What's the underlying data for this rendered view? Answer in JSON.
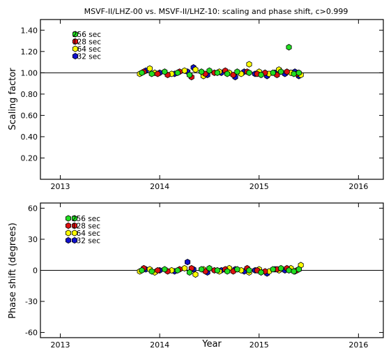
{
  "chart_data": [
    {
      "type": "scatter",
      "title": "MSVF-II/LHZ-00 vs. MSVF-II/LHZ-10: scaling and phase shift, c>0.999",
      "ylabel": "Scaling factor",
      "xlabel": "",
      "xlim": [
        2012.8,
        2016.25
      ],
      "ylim": [
        0.0,
        1.5
      ],
      "xticks": [
        2013,
        2014,
        2015,
        2016
      ],
      "xtick_labels": [
        "2013",
        "2014",
        "2015",
        "2016"
      ],
      "yticks": [
        0.2,
        0.4,
        0.6,
        0.8,
        1.0,
        1.2,
        1.4
      ],
      "ytick_labels": [
        "0.20",
        "0.40",
        "0.60",
        "0.80",
        "1.00",
        "1.20",
        "1.40"
      ],
      "reference_line": 1.0,
      "grid": false,
      "legend_position": "top-left",
      "legend_style": "single-marker",
      "series": [
        {
          "name": "256 sec",
          "color": "#22dd22",
          "x": [
            2013.82,
            2013.92,
            2014.05,
            2014.18,
            2014.3,
            2014.42,
            2014.5,
            2014.58,
            2014.68,
            2014.78,
            2014.9,
            2015.02,
            2015.14,
            2015.22,
            2015.3,
            2015.35,
            2015.4
          ],
          "y": [
            1.0,
            0.99,
            1.01,
            1.0,
            0.98,
            1.01,
            1.02,
            1.0,
            0.99,
            1.01,
            1.0,
            0.98,
            1.0,
            1.01,
            1.24,
            0.99,
            1.0
          ]
        },
        {
          "name": "128 sec",
          "color": "#dd1111",
          "x": [
            2013.84,
            2013.98,
            2014.08,
            2014.2,
            2014.32,
            2014.46,
            2014.55,
            2014.66,
            2014.74,
            2014.88,
            2014.98,
            2015.06,
            2015.18,
            2015.28,
            2015.38
          ],
          "y": [
            1.01,
            0.99,
            0.98,
            1.01,
            0.96,
            0.99,
            1.0,
            1.02,
            0.98,
            1.01,
            0.99,
            1.0,
            0.98,
            1.01,
            0.99
          ]
        },
        {
          "name": "64 sec",
          "color": "#ffff00",
          "x": [
            2013.8,
            2013.9,
            2013.95,
            2014.12,
            2014.25,
            2014.36,
            2014.44,
            2014.6,
            2014.7,
            2014.82,
            2014.9,
            2015.0,
            2015.1,
            2015.2,
            2015.32,
            2015.42
          ],
          "y": [
            0.99,
            1.04,
            1.0,
            0.99,
            1.02,
            1.03,
            0.97,
            1.01,
            1.0,
            0.99,
            1.08,
            1.01,
            0.99,
            1.03,
            1.0,
            0.98
          ]
        },
        {
          "name": "32 sec",
          "color": "#1111cc",
          "x": [
            2013.86,
            2014.0,
            2014.15,
            2014.28,
            2014.34,
            2014.48,
            2014.62,
            2014.76,
            2014.85,
            2014.96,
            2015.08,
            2015.16,
            2015.26,
            2015.36,
            2015.4
          ],
          "y": [
            1.02,
            1.0,
            0.99,
            1.01,
            1.05,
            0.98,
            1.0,
            0.96,
            1.01,
            0.99,
            0.97,
            1.0,
            0.99,
            1.01,
            0.97
          ]
        }
      ]
    },
    {
      "type": "scatter",
      "title": "",
      "ylabel": "Phase shift (degrees)",
      "xlabel": "Year",
      "xlim": [
        2012.8,
        2016.25
      ],
      "ylim": [
        -65,
        65
      ],
      "xticks": [
        2013,
        2014,
        2015,
        2016
      ],
      "xtick_labels": [
        "2013",
        "2014",
        "2015",
        "2016"
      ],
      "yticks": [
        -60,
        -30,
        0,
        30,
        60
      ],
      "ytick_labels": [
        "-60",
        "-30",
        "0",
        "30",
        "60"
      ],
      "reference_line": 0,
      "grid": false,
      "legend_position": "top-left",
      "legend_style": "double-marker",
      "series": [
        {
          "name": "256 sec",
          "color": "#22dd22",
          "x": [
            2013.82,
            2013.92,
            2014.05,
            2014.18,
            2014.3,
            2014.42,
            2014.5,
            2014.58,
            2014.68,
            2014.78,
            2014.9,
            2015.02,
            2015.14,
            2015.22,
            2015.3,
            2015.35,
            2015.4
          ],
          "y": [
            0,
            -1,
            1,
            0,
            -2,
            1,
            2,
            0,
            -1,
            1,
            0,
            -2,
            1,
            2,
            0,
            -1,
            1
          ]
        },
        {
          "name": "128 sec",
          "color": "#dd1111",
          "x": [
            2013.84,
            2013.98,
            2014.08,
            2014.2,
            2014.32,
            2014.46,
            2014.55,
            2014.66,
            2014.74,
            2014.88,
            2014.98,
            2015.06,
            2015.18,
            2015.28,
            2015.38
          ],
          "y": [
            2,
            0,
            -1,
            1,
            2,
            -1,
            0,
            1,
            -1,
            2,
            0,
            -1,
            1,
            2,
            0
          ]
        },
        {
          "name": "64 sec",
          "color": "#ffff00",
          "x": [
            2013.8,
            2013.9,
            2013.95,
            2014.12,
            2014.25,
            2014.36,
            2014.44,
            2014.6,
            2014.7,
            2014.82,
            2014.9,
            2015.0,
            2015.1,
            2015.2,
            2015.32,
            2015.42
          ],
          "y": [
            -1,
            1,
            -2,
            0,
            2,
            -4,
            1,
            -1,
            2,
            0,
            -2,
            1,
            -1,
            0,
            2,
            5
          ]
        },
        {
          "name": "32 sec",
          "color": "#1111cc",
          "x": [
            2013.86,
            2014.0,
            2014.15,
            2014.28,
            2014.34,
            2014.48,
            2014.62,
            2014.76,
            2014.85,
            2014.96,
            2015.08,
            2015.16,
            2015.26,
            2015.36,
            2015.4
          ],
          "y": [
            1,
            0,
            -1,
            8,
            1,
            -2,
            0,
            1,
            -1,
            0,
            -3,
            1,
            0,
            -1,
            1
          ]
        }
      ]
    }
  ]
}
